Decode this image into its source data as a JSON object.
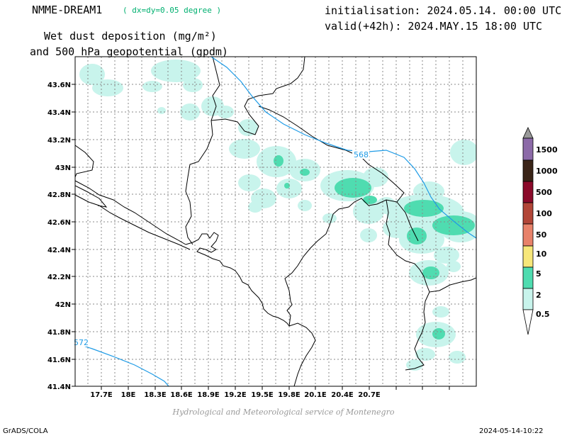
{
  "header": {
    "model": "NMME-DREAM1",
    "resolution": "( dx=dy=0.05 degree )",
    "init": "initialisation: 2024.05.14. 00:00 UTC",
    "valid": "valid(+42h): 2024.MAY.15 18:00 UTC",
    "variable_line1": "Wet dust deposition (mg/m²)",
    "variable_line2": "and 500 hPa geopotential (gpdm)"
  },
  "map": {
    "lat_labels": [
      "43.6N",
      "43.4N",
      "43.2N",
      "43N",
      "42.8N",
      "42.6N",
      "42.4N",
      "42.2N",
      "42N",
      "41.8N",
      "41.6N",
      "41.4N"
    ],
    "lon_labels": [
      "17.7E",
      "18E",
      "18.3E",
      "18.6E",
      "18.9E",
      "19.2E",
      "19.5E",
      "19.8E",
      "20.1E",
      "20.4E",
      "20.7E"
    ],
    "contours": [
      {
        "label": "568",
        "color": "#1e9be6"
      },
      {
        "label": "572",
        "color": "#1e9be6"
      }
    ],
    "legend": {
      "levels": [
        {
          "label": "1500",
          "color": "#8c6aa8"
        },
        {
          "label": "1000",
          "color": "#3a2418"
        },
        {
          "label": "500",
          "color": "#8b0a2a"
        },
        {
          "label": "100",
          "color": "#b24638"
        },
        {
          "label": "50",
          "color": "#e8826a"
        },
        {
          "label": "10",
          "color": "#f7e77a"
        },
        {
          "label": "5",
          "color": "#4fdcb0"
        },
        {
          "label": "2",
          "color": "#c8f4ec"
        },
        {
          "label": "0.5",
          "color": "#ffffff"
        }
      ]
    }
  },
  "footer": {
    "credit": "Hydrological and Meteorological service of Montenegro",
    "left": "GrADS/COLA",
    "right": "2024-05-14-10:22"
  }
}
